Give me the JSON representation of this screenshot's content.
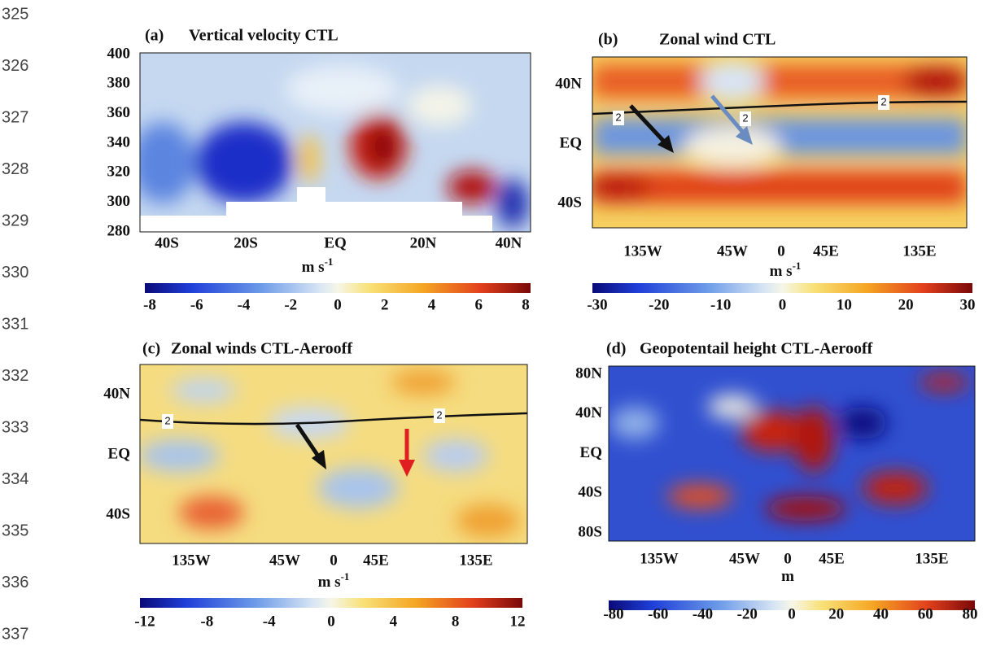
{
  "line_numbers": [
    "325",
    "326",
    "327",
    "328",
    "329",
    "330",
    "331",
    "332",
    "333",
    "334",
    "335",
    "336",
    "337"
  ],
  "panels": [
    {
      "label": "(a)",
      "title": "Vertical velocity CTL",
      "yticks": [
        "400",
        "380",
        "360",
        "340",
        "320",
        "300",
        "280"
      ],
      "xticks": [
        "40S",
        "20S",
        "EQ",
        "20N",
        "40N"
      ],
      "units": {
        "base": "m s",
        "sup": "-1"
      },
      "colorbar": [
        "-8",
        "-6",
        "-4",
        "-2",
        "0",
        "2",
        "4",
        "6",
        "8"
      ]
    },
    {
      "label": "(b)",
      "title": "Zonal wind CTL",
      "yticks": [
        "40N",
        "EQ",
        "40S"
      ],
      "xticks": [
        "135W",
        "45W",
        "0",
        "45E",
        "135E"
      ],
      "units": {
        "base": "m s",
        "sup": "-1"
      },
      "colorbar": [
        "-30",
        "-20",
        "-10",
        "0",
        "10",
        "20",
        "30"
      ],
      "contour_labels": [
        "2",
        "2",
        "2"
      ]
    },
    {
      "label": "(c)",
      "title": "Zonal winds CTL-Aerooff",
      "yticks": [
        "40N",
        "EQ",
        "40S"
      ],
      "xticks": [
        "135W",
        "45W",
        "0",
        "45E",
        "135E"
      ],
      "units": {
        "base": "m s",
        "sup": "-1"
      },
      "colorbar": [
        "-12",
        "-8",
        "-4",
        "0",
        "4",
        "8",
        "12"
      ],
      "contour_labels": [
        "2",
        "2"
      ]
    },
    {
      "label": "(d)",
      "title": "Geopotentail height CTL-Aerooff",
      "yticks": [
        "80N",
        "40N",
        "EQ",
        "40S",
        "80S"
      ],
      "xticks": [
        "135W",
        "45W",
        "0",
        "45E",
        "135E"
      ],
      "units": {
        "base": "m"
      },
      "colorbar": [
        "-80",
        "-60",
        "-40",
        "-20",
        "0",
        "20",
        "40",
        "60",
        "80"
      ]
    }
  ]
}
